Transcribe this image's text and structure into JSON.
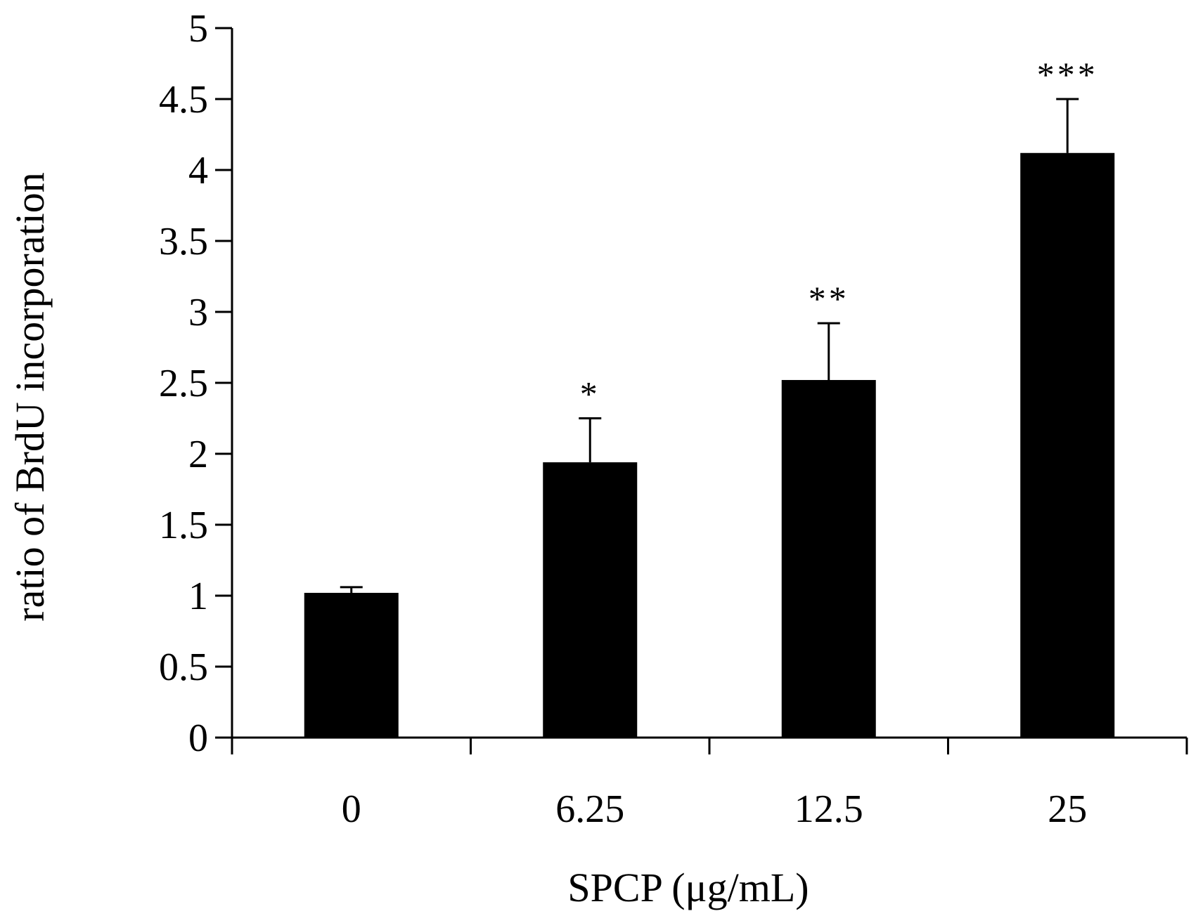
{
  "chart_data": {
    "type": "bar",
    "title": "",
    "xlabel": "SPCP (μg/mL)",
    "ylabel": "ratio of BrdU incorporation",
    "categories": [
      "0",
      "6.25",
      "12.5",
      "25"
    ],
    "values": [
      1.02,
      1.94,
      2.52,
      4.12
    ],
    "error_upper": [
      0.04,
      0.31,
      0.4,
      0.38
    ],
    "significance": [
      "",
      "*",
      "**",
      "***"
    ],
    "ylim": [
      0,
      5
    ],
    "yticks": [
      "0",
      "0.5",
      "1",
      "1.5",
      "2",
      "2.5",
      "3",
      "3.5",
      "4",
      "4.5",
      "5"
    ],
    "ytick_values": [
      0,
      0.5,
      1,
      1.5,
      2,
      2.5,
      3,
      3.5,
      4,
      4.5,
      5
    ],
    "grid": false,
    "bar_color": "#000000",
    "axis_color": "#000000"
  }
}
